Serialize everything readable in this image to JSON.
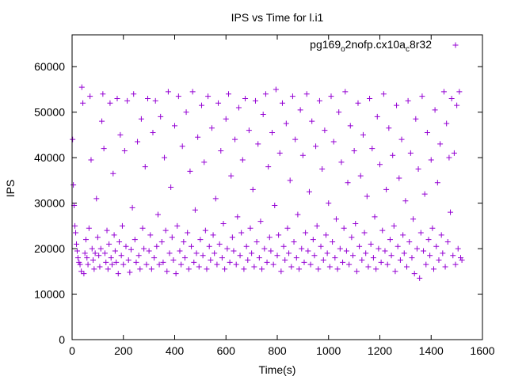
{
  "chart_data": {
    "type": "scatter",
    "title": "IPS vs Time for l.i1",
    "xlabel": "Time(s)",
    "ylabel": "IPS",
    "xlim": [
      0,
      1600
    ],
    "ylim": [
      0,
      67000
    ],
    "x_ticks": [
      "0",
      "200",
      "400",
      "600",
      "800",
      "1000",
      "1200",
      "1400",
      "1600"
    ],
    "y_ticks": [
      "0",
      "10000",
      "20000",
      "30000",
      "40000",
      "50000",
      "60000"
    ],
    "grid": false,
    "legend": "top-right",
    "marker": "+",
    "series": [
      {
        "name": "pg169_o2nofp.cx10a_c8r32",
        "color": "#9400D3",
        "points": [
          [
            2,
            44000
          ],
          [
            5,
            34000
          ],
          [
            8,
            29500
          ],
          [
            11,
            25000
          ],
          [
            14,
            23500
          ],
          [
            17,
            21000
          ],
          [
            20,
            19500
          ],
          [
            23,
            18000
          ],
          [
            27,
            17000
          ],
          [
            31,
            16500
          ],
          [
            36,
            15000
          ],
          [
            38,
            55500
          ],
          [
            42,
            52000
          ],
          [
            46,
            14500
          ],
          [
            50,
            19000
          ],
          [
            54,
            22000
          ],
          [
            58,
            18000
          ],
          [
            62,
            16500
          ],
          [
            66,
            24500
          ],
          [
            70,
            53500
          ],
          [
            74,
            39500
          ],
          [
            78,
            20000
          ],
          [
            82,
            17500
          ],
          [
            86,
            15500
          ],
          [
            90,
            19000
          ],
          [
            95,
            31000
          ],
          [
            100,
            22500
          ],
          [
            104,
            18500
          ],
          [
            108,
            16000
          ],
          [
            112,
            20000
          ],
          [
            116,
            48000
          ],
          [
            120,
            54000
          ],
          [
            124,
            42000
          ],
          [
            128,
            19000
          ],
          [
            132,
            17000
          ],
          [
            136,
            24000
          ],
          [
            140,
            15500
          ],
          [
            144,
            21000
          ],
          [
            148,
            52000
          ],
          [
            152,
            18000
          ],
          [
            156,
            16500
          ],
          [
            160,
            36500
          ],
          [
            164,
            23000
          ],
          [
            168,
            19500
          ],
          [
            172,
            17000
          ],
          [
            176,
            53000
          ],
          [
            180,
            14500
          ],
          [
            184,
            21500
          ],
          [
            188,
            45000
          ],
          [
            192,
            18500
          ],
          [
            196,
            25000
          ],
          [
            200,
            16500
          ],
          [
            205,
            41500
          ],
          [
            210,
            20500
          ],
          [
            215,
            52500
          ],
          [
            220,
            17500
          ],
          [
            225,
            14800
          ],
          [
            230,
            19800
          ],
          [
            235,
            29000
          ],
          [
            240,
            54000
          ],
          [
            245,
            22000
          ],
          [
            250,
            17000
          ],
          [
            255,
            43500
          ],
          [
            260,
            18500
          ],
          [
            265,
            15500
          ],
          [
            270,
            48500
          ],
          [
            275,
            24500
          ],
          [
            280,
            20000
          ],
          [
            285,
            38000
          ],
          [
            290,
            16500
          ],
          [
            295,
            53000
          ],
          [
            300,
            19500
          ],
          [
            305,
            23000
          ],
          [
            310,
            15500
          ],
          [
            315,
            45500
          ],
          [
            320,
            18000
          ],
          [
            325,
            52500
          ],
          [
            330,
            20500
          ],
          [
            335,
            27500
          ],
          [
            340,
            16500
          ],
          [
            345,
            49000
          ],
          [
            350,
            21500
          ],
          [
            355,
            17000
          ],
          [
            360,
            40000
          ],
          [
            365,
            24000
          ],
          [
            370,
            15000
          ],
          [
            375,
            54500
          ],
          [
            380,
            19000
          ],
          [
            385,
            33500
          ],
          [
            390,
            22500
          ],
          [
            395,
            17500
          ],
          [
            400,
            47000
          ],
          [
            405,
            14500
          ],
          [
            410,
            25000
          ],
          [
            415,
            53500
          ],
          [
            420,
            19500
          ],
          [
            425,
            16500
          ],
          [
            430,
            42500
          ],
          [
            435,
            21500
          ],
          [
            440,
            18000
          ],
          [
            445,
            50000
          ],
          [
            450,
            23500
          ],
          [
            455,
            15500
          ],
          [
            460,
            37000
          ],
          [
            465,
            20500
          ],
          [
            470,
            54500
          ],
          [
            475,
            17000
          ],
          [
            480,
            28500
          ],
          [
            485,
            19000
          ],
          [
            490,
            44500
          ],
          [
            495,
            16000
          ],
          [
            500,
            22000
          ],
          [
            505,
            51500
          ],
          [
            510,
            18500
          ],
          [
            515,
            39000
          ],
          [
            520,
            24000
          ],
          [
            525,
            15500
          ],
          [
            530,
            53500
          ],
          [
            535,
            20500
          ],
          [
            540,
            17500
          ],
          [
            545,
            46500
          ],
          [
            550,
            23000
          ],
          [
            555,
            19000
          ],
          [
            560,
            31000
          ],
          [
            565,
            16500
          ],
          [
            570,
            52000
          ],
          [
            575,
            21000
          ],
          [
            580,
            41500
          ],
          [
            585,
            18000
          ],
          [
            590,
            25500
          ],
          [
            595,
            15500
          ],
          [
            600,
            48500
          ],
          [
            605,
            20000
          ],
          [
            610,
            54000
          ],
          [
            615,
            17000
          ],
          [
            620,
            36000
          ],
          [
            625,
            22500
          ],
          [
            630,
            19500
          ],
          [
            635,
            44000
          ],
          [
            640,
            16500
          ],
          [
            645,
            27000
          ],
          [
            650,
            51000
          ],
          [
            655,
            18500
          ],
          [
            660,
            23500
          ],
          [
            665,
            39500
          ],
          [
            670,
            15500
          ],
          [
            675,
            53000
          ],
          [
            680,
            20500
          ],
          [
            685,
            17500
          ],
          [
            690,
            46000
          ],
          [
            695,
            24500
          ],
          [
            700,
            19000
          ],
          [
            705,
            33000
          ],
          [
            710,
            16000
          ],
          [
            715,
            52500
          ],
          [
            720,
            21500
          ],
          [
            725,
            43000
          ],
          [
            730,
            18000
          ],
          [
            735,
            26000
          ],
          [
            740,
            15500
          ],
          [
            745,
            49500
          ],
          [
            750,
            20000
          ],
          [
            755,
            54000
          ],
          [
            760,
            17000
          ],
          [
            765,
            38000
          ],
          [
            770,
            22500
          ],
          [
            775,
            19500
          ],
          [
            780,
            45500
          ],
          [
            785,
            16500
          ],
          [
            790,
            29500
          ],
          [
            795,
            55000
          ],
          [
            800,
            18500
          ],
          [
            805,
            23000
          ],
          [
            810,
            41000
          ],
          [
            815,
            15000
          ],
          [
            820,
            52000
          ],
          [
            825,
            20500
          ],
          [
            830,
            17500
          ],
          [
            835,
            47500
          ],
          [
            840,
            24500
          ],
          [
            845,
            19000
          ],
          [
            850,
            35000
          ],
          [
            855,
            16000
          ],
          [
            860,
            53500
          ],
          [
            865,
            21500
          ],
          [
            870,
            44000
          ],
          [
            875,
            18000
          ],
          [
            880,
            27500
          ],
          [
            885,
            15500
          ],
          [
            890,
            50500
          ],
          [
            895,
            20000
          ],
          [
            900,
            40500
          ],
          [
            905,
            17000
          ],
          [
            910,
            23500
          ],
          [
            915,
            54000
          ],
          [
            920,
            19500
          ],
          [
            925,
            32500
          ],
          [
            930,
            16500
          ],
          [
            935,
            48000
          ],
          [
            940,
            22000
          ],
          [
            945,
            18500
          ],
          [
            950,
            42500
          ],
          [
            955,
            25000
          ],
          [
            960,
            15500
          ],
          [
            965,
            52500
          ],
          [
            970,
            20500
          ],
          [
            975,
            37500
          ],
          [
            980,
            17500
          ],
          [
            985,
            46000
          ],
          [
            990,
            23000
          ],
          [
            995,
            19000
          ],
          [
            1000,
            30000
          ],
          [
            1005,
            16000
          ],
          [
            1010,
            53500
          ],
          [
            1015,
            21500
          ],
          [
            1020,
            43500
          ],
          [
            1025,
            18000
          ],
          [
            1030,
            26500
          ],
          [
            1035,
            15500
          ],
          [
            1040,
            50000
          ],
          [
            1045,
            20000
          ],
          [
            1050,
            39000
          ],
          [
            1055,
            17000
          ],
          [
            1060,
            24500
          ],
          [
            1065,
            54500
          ],
          [
            1070,
            19500
          ],
          [
            1075,
            34500
          ],
          [
            1080,
            16500
          ],
          [
            1085,
            47000
          ],
          [
            1090,
            22500
          ],
          [
            1095,
            18500
          ],
          [
            1100,
            41500
          ],
          [
            1105,
            25500
          ],
          [
            1110,
            15000
          ],
          [
            1115,
            52000
          ],
          [
            1120,
            20500
          ],
          [
            1125,
            36000
          ],
          [
            1130,
            17500
          ],
          [
            1135,
            45000
          ],
          [
            1140,
            23500
          ],
          [
            1145,
            19000
          ],
          [
            1150,
            31500
          ],
          [
            1155,
            16000
          ],
          [
            1160,
            53000
          ],
          [
            1165,
            21000
          ],
          [
            1170,
            42000
          ],
          [
            1175,
            18000
          ],
          [
            1180,
            27000
          ],
          [
            1185,
            15500
          ],
          [
            1190,
            49000
          ],
          [
            1195,
            20000
          ],
          [
            1200,
            38500
          ],
          [
            1205,
            17000
          ],
          [
            1210,
            24000
          ],
          [
            1215,
            54000
          ],
          [
            1220,
            19500
          ],
          [
            1225,
            33000
          ],
          [
            1230,
            16500
          ],
          [
            1235,
            46500
          ],
          [
            1240,
            22000
          ],
          [
            1245,
            18500
          ],
          [
            1250,
            40500
          ],
          [
            1255,
            25000
          ],
          [
            1260,
            15000
          ],
          [
            1265,
            51500
          ],
          [
            1270,
            20500
          ],
          [
            1275,
            35500
          ],
          [
            1280,
            17500
          ],
          [
            1285,
            44000
          ],
          [
            1290,
            23000
          ],
          [
            1295,
            19000
          ],
          [
            1300,
            30500
          ],
          [
            1305,
            16000
          ],
          [
            1310,
            52500
          ],
          [
            1315,
            21500
          ],
          [
            1320,
            41000
          ],
          [
            1325,
            18000
          ],
          [
            1330,
            26500
          ],
          [
            1335,
            14500
          ],
          [
            1340,
            48500
          ],
          [
            1345,
            20000
          ],
          [
            1350,
            37500
          ],
          [
            1355,
            13500
          ],
          [
            1360,
            23500
          ],
          [
            1365,
            53500
          ],
          [
            1370,
            19500
          ],
          [
            1375,
            32000
          ],
          [
            1380,
            16500
          ],
          [
            1385,
            45500
          ],
          [
            1390,
            22000
          ],
          [
            1395,
            18500
          ],
          [
            1400,
            39500
          ],
          [
            1405,
            24500
          ],
          [
            1410,
            15500
          ],
          [
            1415,
            50500
          ],
          [
            1420,
            20500
          ],
          [
            1425,
            34500
          ],
          [
            1430,
            17500
          ],
          [
            1435,
            43000
          ],
          [
            1440,
            23000
          ],
          [
            1445,
            19000
          ],
          [
            1450,
            54500
          ],
          [
            1455,
            16000
          ],
          [
            1460,
            47500
          ],
          [
            1465,
            21500
          ],
          [
            1470,
            40000
          ],
          [
            1475,
            28000
          ],
          [
            1480,
            53000
          ],
          [
            1485,
            18500
          ],
          [
            1490,
            41000
          ],
          [
            1495,
            16500
          ],
          [
            1500,
            51500
          ],
          [
            1505,
            20000
          ],
          [
            1510,
            54500
          ],
          [
            1515,
            18000
          ],
          [
            1520,
            17500
          ]
        ]
      }
    ]
  }
}
